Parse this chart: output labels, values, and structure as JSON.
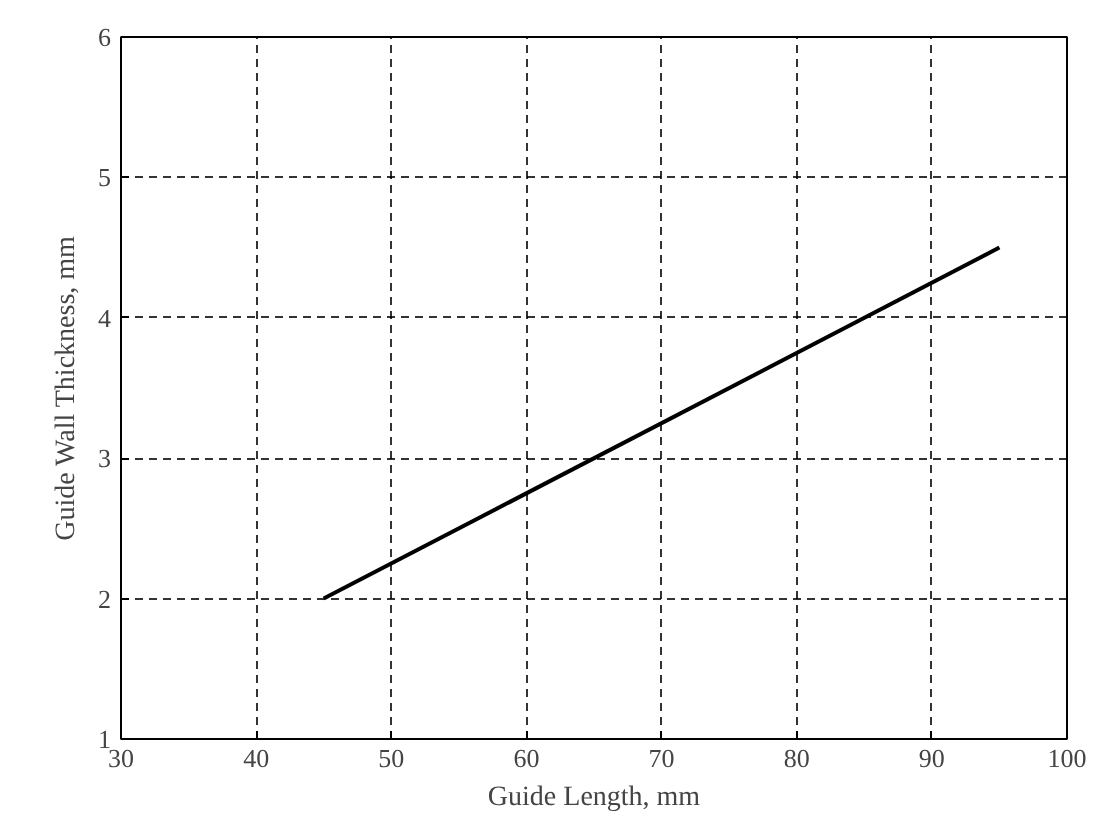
{
  "chart_data": {
    "type": "line",
    "xlabel": "Guide Length, mm",
    "ylabel": "Guide Wall Thickness, mm",
    "series": [
      {
        "color": "#000000",
        "x": [
          45,
          95
        ],
        "values": [
          2,
          4.5
        ]
      }
    ],
    "xlim": [
      30,
      100
    ],
    "ylim": [
      1,
      6
    ],
    "xticks": [
      30,
      40,
      50,
      60,
      70,
      80,
      90,
      100
    ],
    "yticks": [
      1,
      2,
      3,
      4,
      5,
      6
    ],
    "grid": true,
    "line_style": "solid",
    "marker": "none"
  }
}
